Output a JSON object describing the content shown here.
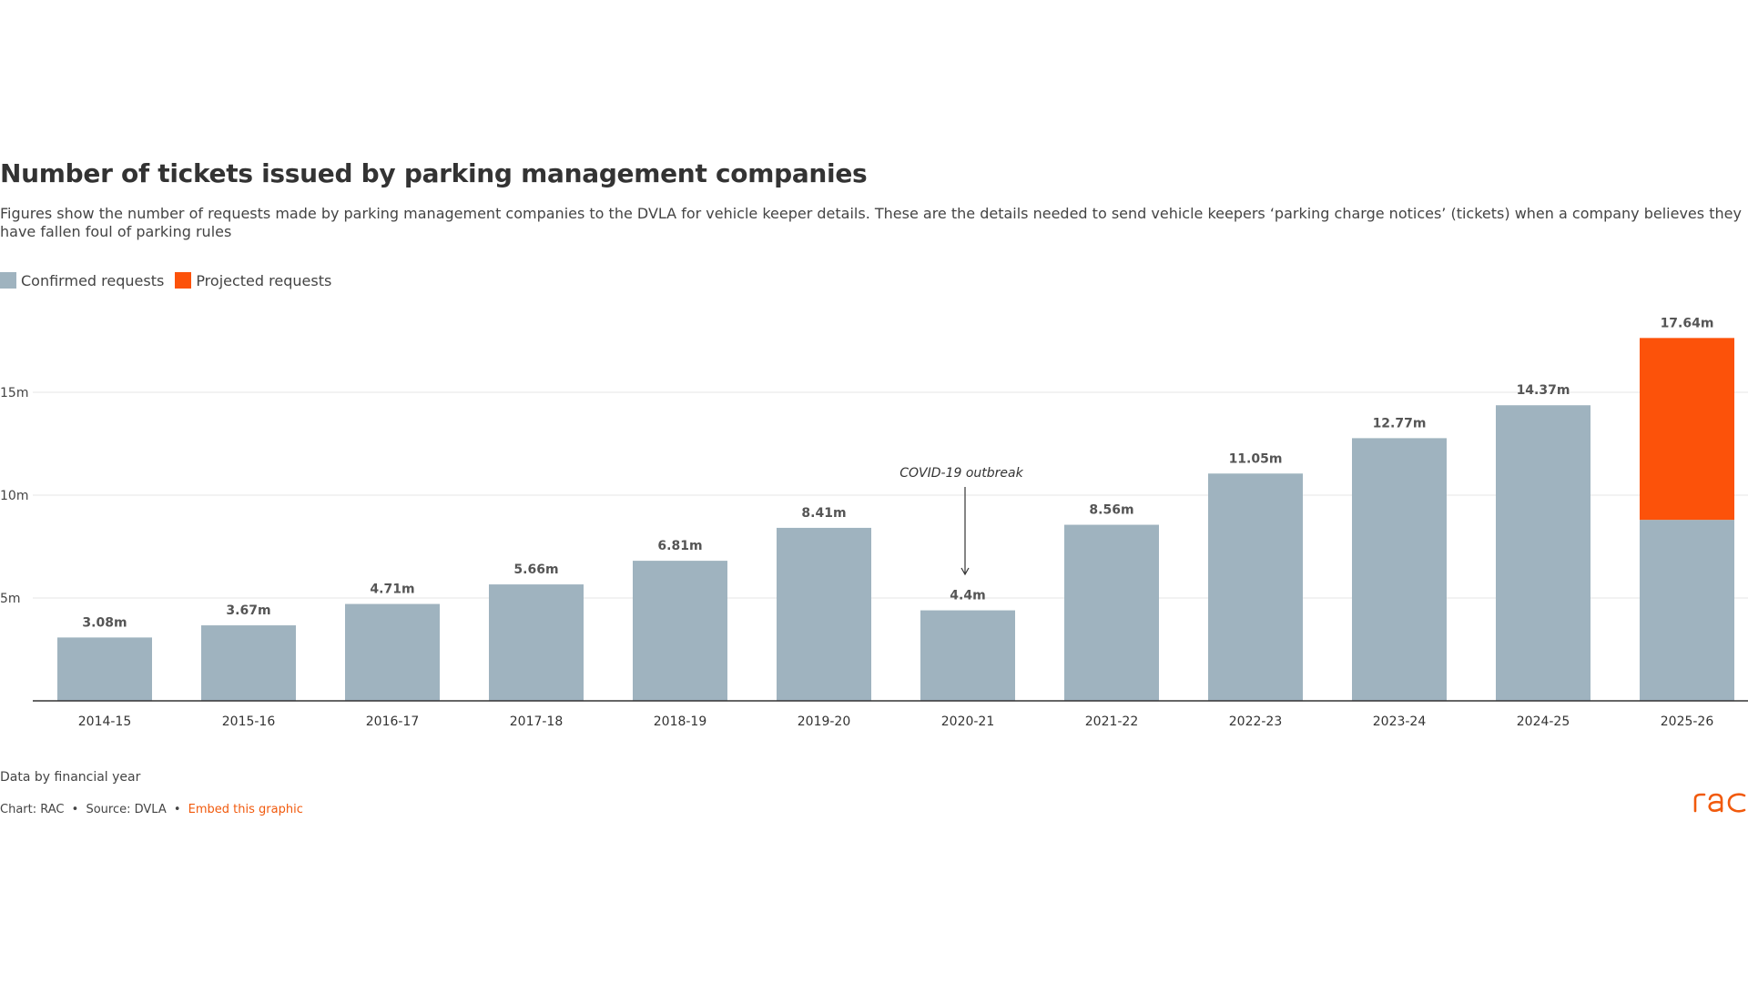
{
  "header": {
    "title": "Number of tickets issued by parking management companies",
    "subtitle": "Figures show the number of requests made by parking management companies to the DVLA for vehicle keeper details. These are the details needed to send vehicle keepers ‘parking charge notices’ (tickets) when a company believes they have fallen foul of parking rules"
  },
  "legend": {
    "confirmed_label": "Confirmed requests",
    "projected_label": "Projected requests"
  },
  "colors": {
    "confirmed": "#9fb3bf",
    "projected": "#fc520a",
    "accent": "#f15a0d"
  },
  "chart_data": {
    "type": "bar",
    "stacked": true,
    "categories": [
      "2014-15",
      "2015-16",
      "2016-17",
      "2017-18",
      "2018-19",
      "2019-20",
      "2020-21",
      "2021-22",
      "2022-23",
      "2023-24",
      "2024-25",
      "2025-26"
    ],
    "series": [
      {
        "name": "Confirmed requests",
        "values": [
          3.08,
          3.67,
          4.71,
          5.66,
          6.81,
          8.41,
          4.4,
          8.56,
          11.05,
          12.77,
          14.37,
          8.8
        ]
      },
      {
        "name": "Projected requests",
        "values": [
          0,
          0,
          0,
          0,
          0,
          0,
          0,
          0,
          0,
          0,
          0,
          8.84
        ]
      }
    ],
    "value_labels": [
      "3.08m",
      "3.67m",
      "4.71m",
      "5.66m",
      "6.81m",
      "8.41m",
      "4.4m",
      "8.56m",
      "11.05m",
      "12.77m",
      "14.37m",
      "17.64m"
    ],
    "totals": [
      3.08,
      3.67,
      4.71,
      5.66,
      6.81,
      8.41,
      4.4,
      8.56,
      11.05,
      12.77,
      14.37,
      17.64
    ],
    "y_ticks": [
      5,
      10,
      15
    ],
    "y_tick_labels": [
      "5m",
      "10m",
      "15m"
    ],
    "ylim": [
      0,
      18.5
    ],
    "grid": true,
    "legend_position": "top-left",
    "annotation": {
      "text": "COVID-19 outbreak",
      "category": "2020-21"
    }
  },
  "footer": {
    "note": "Data by financial year",
    "credit": "Chart: RAC",
    "separator": "•",
    "source": "Source: DVLA",
    "embed_link": "Embed this graphic",
    "logo_text": "RAC"
  }
}
